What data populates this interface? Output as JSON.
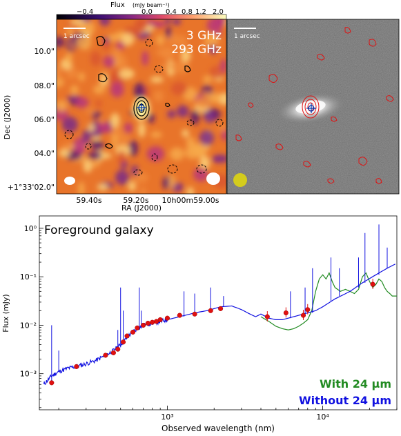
{
  "top": {
    "colorbar": {
      "title": "Flux",
      "unit": "(mJy beam⁻¹)",
      "ticks": [
        "−0.4",
        "0.0",
        "0.4",
        "0.8",
        "1.2",
        "2.0"
      ]
    },
    "left_panel": {
      "scale_label": "1 arcsec",
      "freq_labels": [
        "3 GHz",
        "293 GHz"
      ],
      "ytick_labels": [
        "10.0\"",
        "08.0\"",
        "06.0\"",
        "04.0\"",
        "+1°33'02.0\""
      ],
      "xtick_labels": [
        "59.40s",
        "59.20s",
        "10h00m59.00s"
      ],
      "ylabel": "Dec (J2000)",
      "xlabel": "RA (J2000)"
    },
    "right_panel": {
      "scale_label": "1 arcsec"
    }
  },
  "chart_data": {
    "type": "line",
    "title": "Foreground galaxy",
    "xlabel": "Observed wavelength (nm)",
    "ylabel": "Flux (mJy)",
    "xscale": "log",
    "yscale": "log",
    "xlim": [
      150,
      30000
    ],
    "ylim": [
      0.00018,
      1.8
    ],
    "xtick_labels": [
      "10³",
      "10⁴"
    ],
    "ytick_labels": [
      "10⁰",
      "10⁻¹",
      "10⁻²",
      "10⁻³"
    ],
    "legend": [
      "With 24 µm",
      "Without 24 µm"
    ],
    "legend_placement": "bottom-right",
    "colors": {
      "with": "#228B22",
      "without": "#1010e0",
      "points": "#e01010"
    },
    "series": [
      {
        "name": "Without 24 µm",
        "x": [
          160,
          180,
          200,
          230,
          260,
          300,
          350,
          400,
          450,
          500,
          550,
          600,
          700,
          800,
          900,
          1000,
          1200,
          1500,
          1800,
          2200,
          2600,
          3000,
          3400,
          3700,
          4000,
          4500,
          5000,
          5500,
          6000,
          7000,
          8000,
          9000,
          10000,
          12000,
          15000,
          18000,
          22000,
          26000,
          30000
        ],
        "y": [
          0.0006,
          0.0009,
          0.0011,
          0.0013,
          0.0014,
          0.0016,
          0.0019,
          0.0024,
          0.003,
          0.004,
          0.0055,
          0.0075,
          0.01,
          0.011,
          0.012,
          0.013,
          0.015,
          0.018,
          0.02,
          0.024,
          0.025,
          0.021,
          0.017,
          0.015,
          0.017,
          0.014,
          0.013,
          0.013,
          0.014,
          0.016,
          0.018,
          0.02,
          0.024,
          0.035,
          0.05,
          0.075,
          0.11,
          0.15,
          0.19
        ]
      },
      {
        "name": "With 24 µm",
        "x": [
          4000,
          4500,
          5000,
          5500,
          6000,
          6500,
          7000,
          7500,
          8000,
          8500,
          9000,
          9500,
          10000,
          10500,
          11000,
          11500,
          12000,
          13000,
          14000,
          15000,
          16000,
          17000,
          18000,
          19000,
          20000,
          21000,
          22000,
          23000,
          24000,
          25000,
          26000,
          27000,
          28000,
          30000
        ],
        "y": [
          0.015,
          0.012,
          0.0095,
          0.0085,
          0.008,
          0.0085,
          0.0095,
          0.011,
          0.013,
          0.02,
          0.05,
          0.09,
          0.11,
          0.09,
          0.12,
          0.08,
          0.06,
          0.05,
          0.055,
          0.05,
          0.045,
          0.055,
          0.1,
          0.12,
          0.08,
          0.06,
          0.07,
          0.09,
          0.08,
          0.06,
          0.05,
          0.045,
          0.04,
          0.04
        ]
      },
      {
        "name": "",
        "points_x": [
          180,
          260,
          400,
          450,
          480,
          520,
          550,
          600,
          640,
          700,
          750,
          800,
          850,
          900,
          1000,
          1200,
          1500,
          1900,
          2200,
          4400,
          5800,
          7500,
          8000,
          21000
        ],
        "points_y": [
          0.00065,
          0.0014,
          0.0024,
          0.0027,
          0.0032,
          0.0045,
          0.006,
          0.0072,
          0.0088,
          0.01,
          0.011,
          0.0115,
          0.012,
          0.013,
          0.014,
          0.016,
          0.017,
          0.02,
          0.022,
          0.015,
          0.018,
          0.016,
          0.021,
          0.07
        ]
      }
    ]
  }
}
